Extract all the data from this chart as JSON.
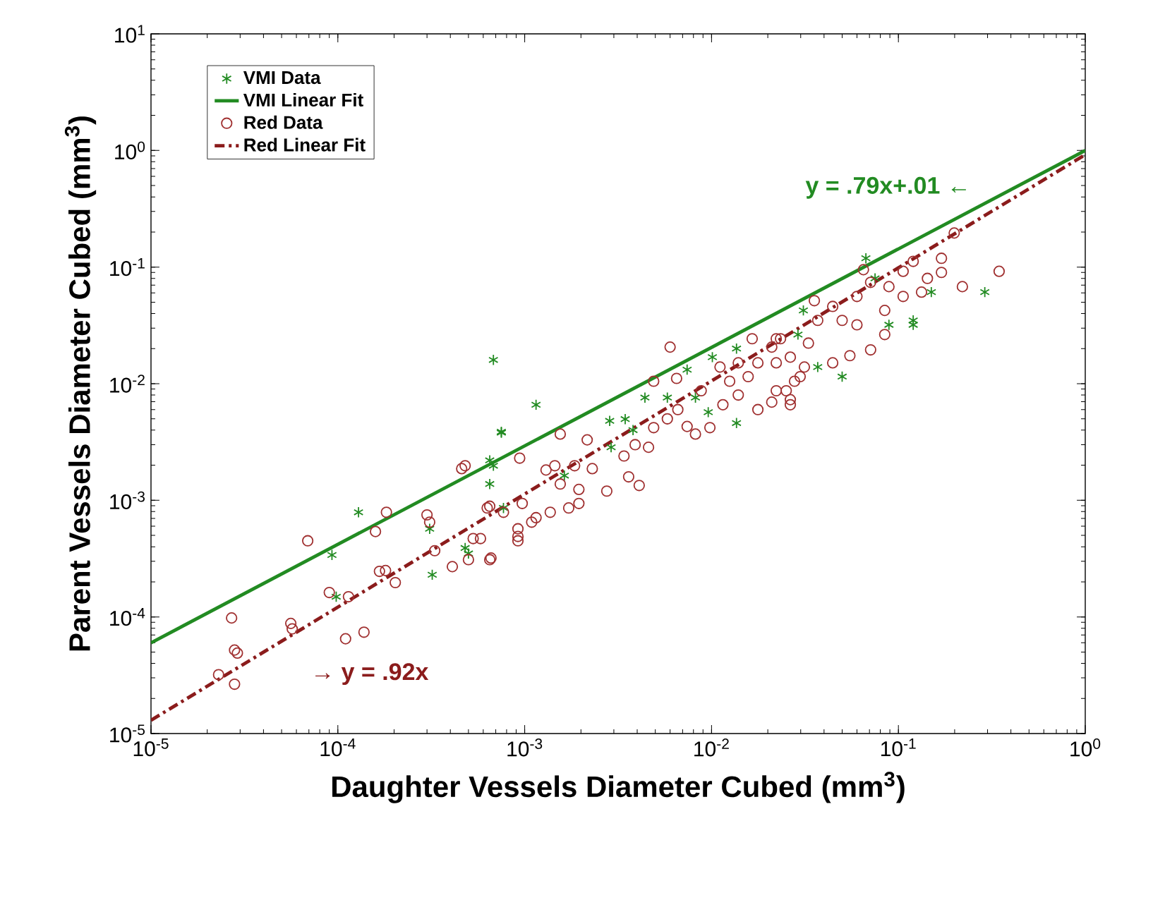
{
  "chart_data": {
    "type": "scatter",
    "xlabel": "Daughter Vessels Diameter Cubed (mm$^{3}$)",
    "ylabel": "Parent Vessels Diameter Cubed (mm$^{3}$)",
    "log": "xy",
    "xlim": [
      1e-05,
      1
    ],
    "ylim": [
      1e-05,
      10
    ],
    "xticks": [
      {
        "value": 1e-05,
        "label": "10$^{-5}$"
      },
      {
        "value": 0.0001,
        "label": "10$^{-4}$"
      },
      {
        "value": 0.001,
        "label": "10$^{-3}$"
      },
      {
        "value": 0.01,
        "label": "10$^{-2}$"
      },
      {
        "value": 0.1,
        "label": "10$^{-1}$"
      },
      {
        "value": 1,
        "label": "10$^{0}$"
      }
    ],
    "yticks": [
      {
        "value": 1e-05,
        "label": "10$^{-5}$"
      },
      {
        "value": 0.0001,
        "label": "10$^{-4}$"
      },
      {
        "value": 0.001,
        "label": "10$^{-3}$"
      },
      {
        "value": 0.01,
        "label": "10$^{-2}$"
      },
      {
        "value": 0.1,
        "label": "10$^{-1}$"
      },
      {
        "value": 1,
        "label": "10$^{0}$"
      },
      {
        "value": 10,
        "label": "10$^{1}$"
      }
    ],
    "grid": false,
    "legend": "top left",
    "series": [
      {
        "name": "VMI Data",
        "type": "scatter",
        "marker": "cross",
        "color": "#228b22",
        "x": [
          0.00075,
          0.00065,
          0.00068,
          0.00065,
          0.000129,
          9.3e-05,
          0.00031,
          0.00032,
          9.8e-05,
          0.00048,
          0.00077,
          0.00068,
          0.00115,
          0.00075,
          0.0005,
          0.0074,
          0.0044,
          0.0058,
          0.00345,
          0.00285,
          0.0029,
          0.0038,
          0.00163,
          0.0136,
          0.0096,
          0.0082,
          0.0136,
          0.0101,
          0.067,
          0.031,
          0.075,
          0.12,
          0.12,
          0.29,
          0.05,
          0.037,
          0.029,
          0.089,
          0.15
        ],
        "values": [
          0.00387,
          0.0022,
          0.00198,
          0.00138,
          0.00079,
          0.00034,
          0.00057,
          0.00023,
          0.000149,
          0.00039,
          0.00086,
          0.016,
          0.0066,
          0.0038,
          0.00035,
          0.0132,
          0.0076,
          0.0076,
          0.00497,
          0.0048,
          0.00285,
          0.004,
          0.00163,
          0.0046,
          0.0057,
          0.0076,
          0.02,
          0.0169,
          0.119,
          0.0425,
          0.08,
          0.0349,
          0.032,
          0.061,
          0.0115,
          0.0139,
          0.0264,
          0.032,
          0.061
        ]
      },
      {
        "name": "VMI Linear Fit",
        "type": "line",
        "line_style": "solid",
        "color": "#228b22",
        "x": [
          1e-05,
          1
        ],
        "values": [
          6e-05,
          1
        ]
      },
      {
        "name": "Red Data",
        "type": "scatter",
        "marker": "circle",
        "color": "#a03030",
        "x": [
          0.00046,
          0.00094,
          0.00155,
          0.000182,
          6.9e-05,
          0.000159,
          0.0003,
          0.00031,
          0.00033,
          0.000167,
          0.00018,
          0.000203,
          9e-05,
          0.000114,
          2.7e-05,
          5.6e-05,
          5.7e-05,
          0.00011,
          0.000138,
          2.8e-05,
          2.9e-05,
          2.3e-05,
          2.8e-05,
          0.00041,
          0.0005,
          0.00058,
          0.00065,
          0.00065,
          0.00092,
          0.00109,
          0.0013,
          0.00145,
          0.006,
          0.0049,
          0.0065,
          0.00216,
          0.00048,
          0.00185,
          0.0023,
          0.00155,
          0.00195,
          0.00275,
          0.0036,
          0.0041,
          0.0034,
          0.0039,
          0.0046,
          0.0049,
          0.0058,
          0.0074,
          0.0082,
          0.0098,
          0.00063,
          0.00077,
          0.00097,
          0.00115,
          0.00092,
          0.00092,
          0.00137,
          0.00172,
          0.00195,
          0.00053,
          0.00066,
          0.0115,
          0.0139,
          0.0157,
          0.0177,
          0.021,
          0.0234,
          0.0165,
          0.0264,
          0.0278,
          0.0222,
          0.0177,
          0.0264,
          0.0314,
          0.0125,
          0.0139,
          0.0111,
          0.0088,
          0.0066,
          0.199,
          0.346,
          0.22,
          0.065,
          0.12,
          0.106,
          0.17,
          0.17,
          0.143,
          0.089,
          0.071,
          0.06,
          0.0445,
          0.05,
          0.037,
          0.071,
          0.055,
          0.0445,
          0.0298,
          0.0251,
          0.021,
          0.0264,
          0.0222,
          0.0222,
          0.033,
          0.06,
          0.0845,
          0.106,
          0.133,
          0.0845,
          0.0355
        ],
        "values": [
          0.00187,
          0.0023,
          0.0037,
          0.00079,
          0.00045,
          0.00054,
          0.00075,
          0.00065,
          0.00037,
          0.000246,
          0.00025,
          0.000197,
          0.000162,
          0.000149,
          9.8e-05,
          8.8e-05,
          7.9e-05,
          6.5e-05,
          7.4e-05,
          5.2e-05,
          4.9e-05,
          3.2e-05,
          2.65e-05,
          0.00027,
          0.00031,
          0.00047,
          0.00031,
          0.00089,
          0.00049,
          0.00065,
          0.00182,
          0.00198,
          0.0206,
          0.0105,
          0.0111,
          0.0033,
          0.00198,
          0.00198,
          0.00187,
          0.00138,
          0.00124,
          0.0012,
          0.00159,
          0.00134,
          0.0024,
          0.003,
          0.00285,
          0.0042,
          0.005,
          0.0043,
          0.0037,
          0.0042,
          0.00086,
          0.00079,
          0.00094,
          0.00071,
          0.00057,
          0.00045,
          0.00079,
          0.00086,
          0.00094,
          0.00047,
          0.00032,
          0.0066,
          0.008,
          0.0115,
          0.0151,
          0.0206,
          0.0243,
          0.0243,
          0.0169,
          0.0105,
          0.0087,
          0.006,
          0.0073,
          0.0139,
          0.0105,
          0.0151,
          0.0139,
          0.0087,
          0.006,
          0.196,
          0.092,
          0.068,
          0.095,
          0.112,
          0.092,
          0.119,
          0.09,
          0.08,
          0.068,
          0.074,
          0.056,
          0.046,
          0.0349,
          0.0349,
          0.0195,
          0.0174,
          0.0151,
          0.0115,
          0.0087,
          0.00695,
          0.0066,
          0.0151,
          0.0243,
          0.0223,
          0.032,
          0.0425,
          0.056,
          0.061,
          0.0264,
          0.0515
        ]
      },
      {
        "name": "Red Linear Fit",
        "type": "line",
        "line_style": "dashdot",
        "color": "#8b1c1c",
        "x": [
          1e-05,
          1
        ],
        "values": [
          1.3e-05,
          0.92
        ]
      }
    ],
    "annotations": [
      "y = .79x+.01 ←",
      "→ y = .92x"
    ]
  }
}
